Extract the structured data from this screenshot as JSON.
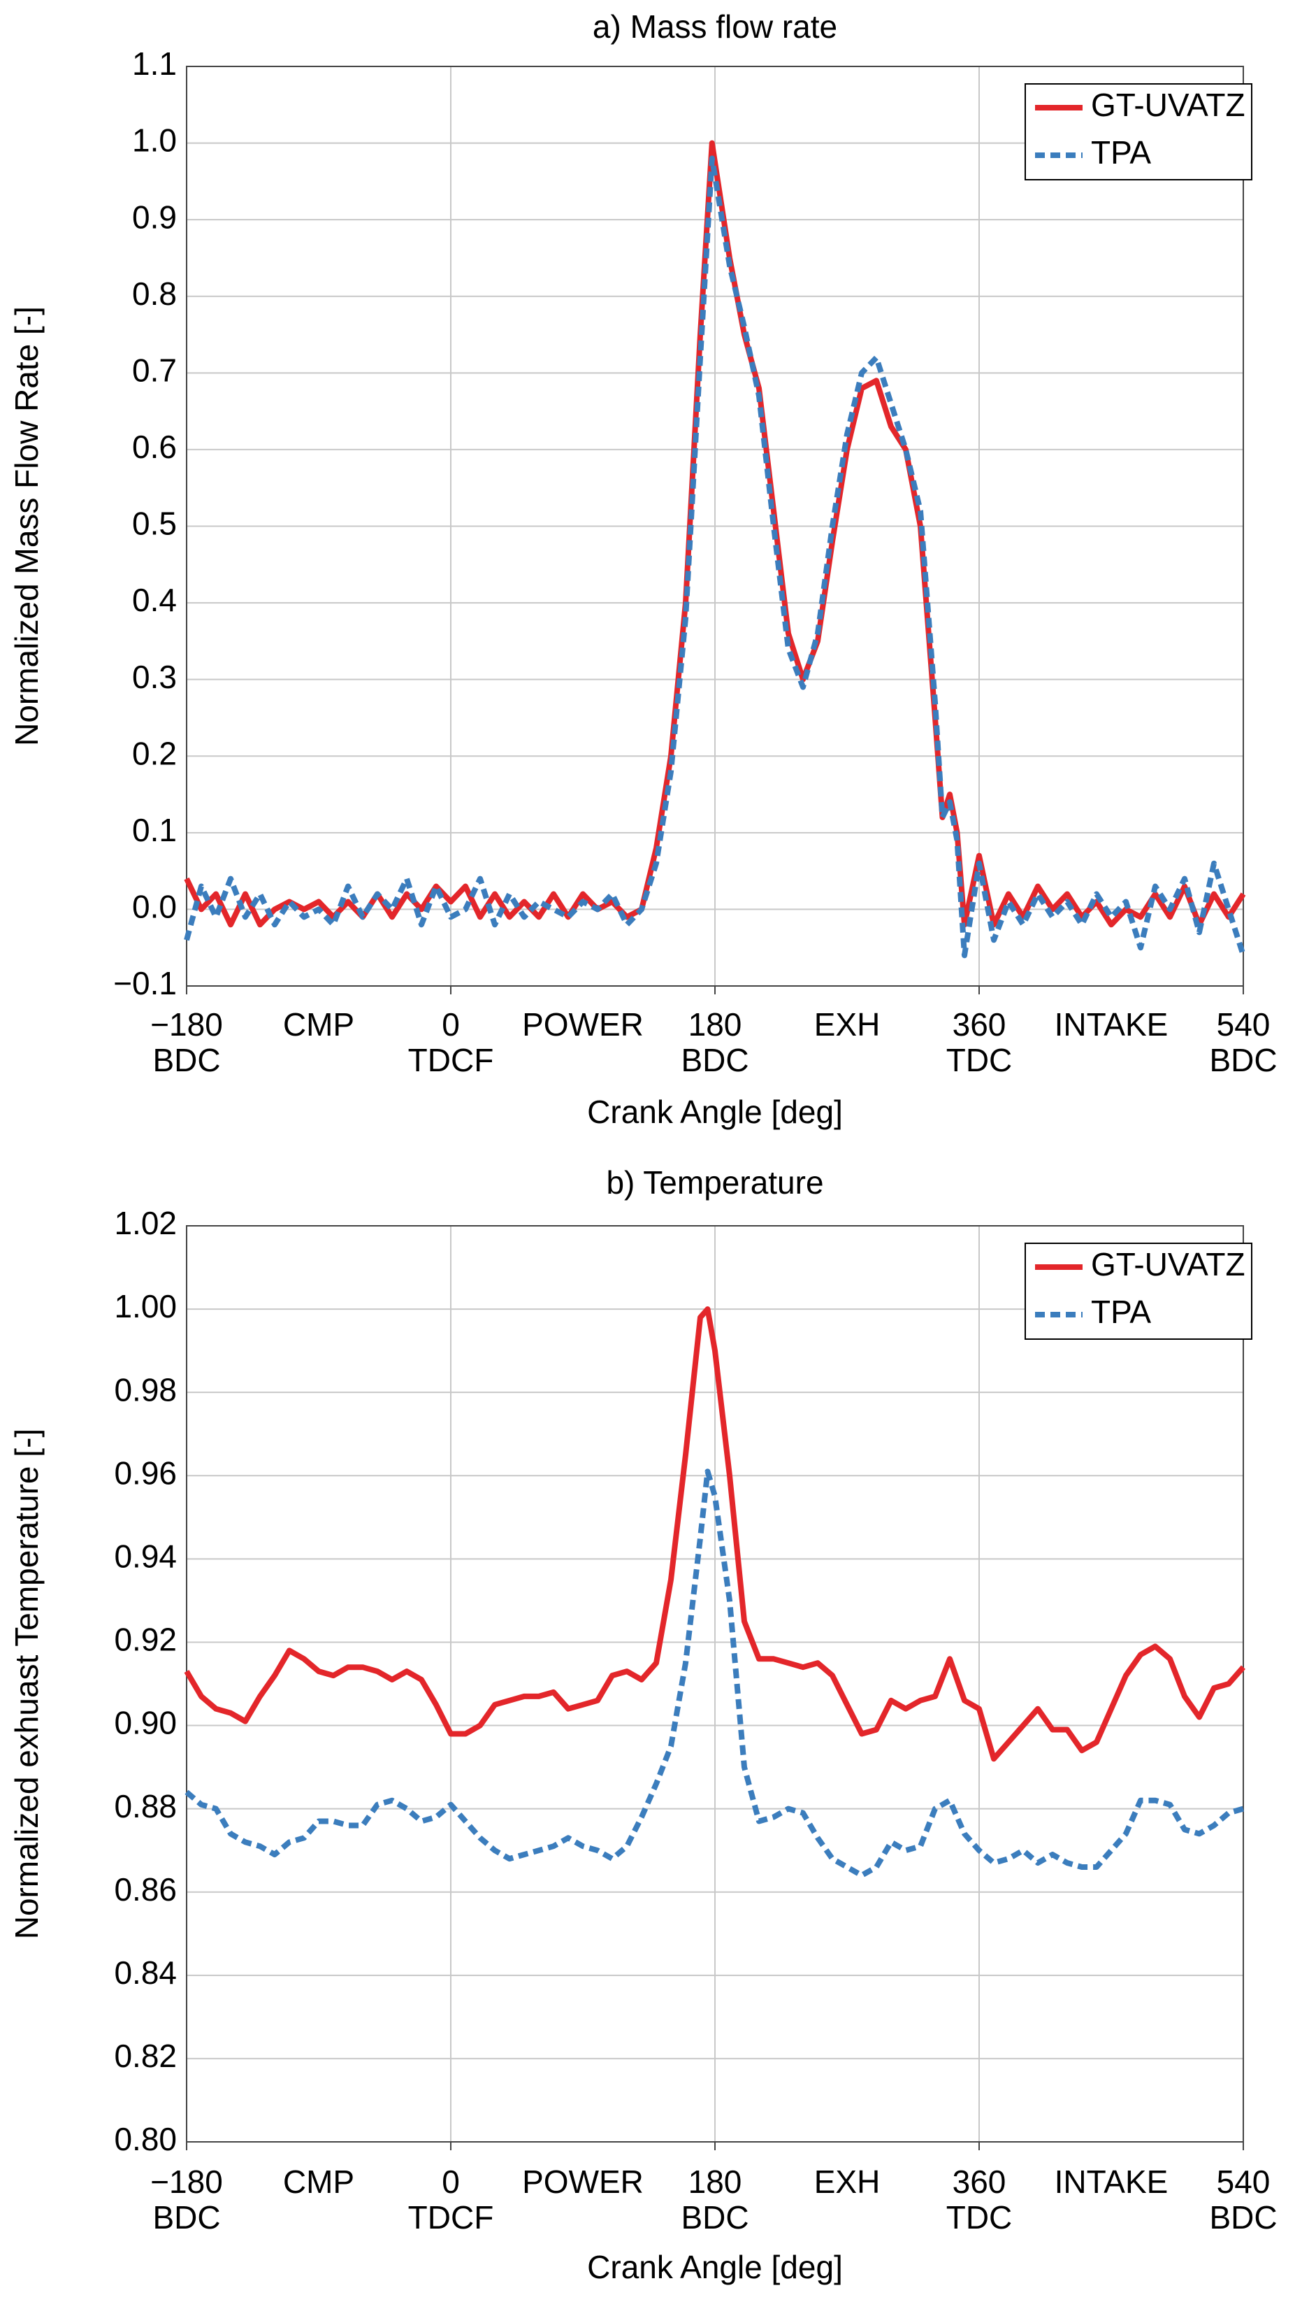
{
  "chart_data": [
    {
      "type": "line",
      "title": "a) Mass flow rate",
      "x_label": "Crank Angle [deg]",
      "y_label": "Normalized Mass Flow Rate [-]",
      "x": [
        -180,
        -170,
        -160,
        -150,
        -140,
        -130,
        -120,
        -110,
        -100,
        -90,
        -80,
        -70,
        -60,
        -50,
        -40,
        -30,
        -20,
        -10,
        0,
        10,
        20,
        30,
        40,
        50,
        60,
        70,
        80,
        90,
        100,
        110,
        120,
        130,
        140,
        150,
        160,
        170,
        178,
        190,
        200,
        210,
        220,
        230,
        240,
        250,
        260,
        270,
        280,
        290,
        300,
        310,
        320,
        330,
        335,
        340,
        345,
        350,
        360,
        370,
        380,
        390,
        400,
        410,
        420,
        430,
        440,
        450,
        460,
        470,
        480,
        490,
        500,
        510,
        520,
        530,
        540
      ],
      "series": [
        {
          "name": "GT-UVATZ",
          "color": "#e3262a",
          "dash": false,
          "values": [
            0.04,
            0.0,
            0.02,
            -0.02,
            0.02,
            -0.02,
            0.0,
            0.01,
            0.0,
            0.01,
            -0.01,
            0.01,
            -0.01,
            0.02,
            -0.01,
            0.02,
            0.0,
            0.03,
            0.01,
            0.03,
            -0.01,
            0.02,
            -0.01,
            0.01,
            -0.01,
            0.02,
            -0.01,
            0.02,
            0.0,
            0.01,
            -0.01,
            0.0,
            0.08,
            0.2,
            0.4,
            0.75,
            1.0,
            0.85,
            0.75,
            0.68,
            0.52,
            0.36,
            0.3,
            0.35,
            0.48,
            0.6,
            0.68,
            0.69,
            0.63,
            0.6,
            0.5,
            0.25,
            0.12,
            0.15,
            0.1,
            -0.02,
            0.07,
            -0.02,
            0.02,
            -0.01,
            0.03,
            0.0,
            0.02,
            -0.01,
            0.01,
            -0.02,
            0.0,
            -0.01,
            0.02,
            -0.01,
            0.03,
            -0.02,
            0.02,
            -0.01,
            0.02
          ]
        },
        {
          "name": "TPA",
          "color": "#3b7dbd",
          "dash": true,
          "values": [
            -0.04,
            0.03,
            -0.01,
            0.04,
            -0.01,
            0.02,
            -0.02,
            0.01,
            -0.01,
            0.0,
            -0.02,
            0.03,
            -0.01,
            0.02,
            0.0,
            0.04,
            -0.02,
            0.03,
            -0.01,
            0.0,
            0.04,
            -0.02,
            0.02,
            -0.01,
            0.01,
            0.0,
            -0.01,
            0.01,
            0.0,
            0.02,
            -0.02,
            0.0,
            0.06,
            0.18,
            0.38,
            0.72,
            0.98,
            0.84,
            0.76,
            0.67,
            0.5,
            0.34,
            0.29,
            0.36,
            0.5,
            0.62,
            0.7,
            0.72,
            0.66,
            0.6,
            0.52,
            0.27,
            0.12,
            0.14,
            0.09,
            -0.06,
            0.06,
            -0.04,
            0.01,
            -0.02,
            0.02,
            -0.01,
            0.01,
            -0.02,
            0.02,
            -0.01,
            0.01,
            -0.05,
            0.03,
            0.0,
            0.04,
            -0.03,
            0.06,
            0.0,
            -0.06
          ]
        }
      ],
      "xlim": [
        -180,
        540
      ],
      "xticks": [
        {
          "value": -180,
          "label": "−180",
          "sublabel": "BDC"
        },
        {
          "value": 0,
          "label": "0",
          "sublabel": "TDCF"
        },
        {
          "value": 180,
          "label": "180",
          "sublabel": "BDC"
        },
        {
          "value": 360,
          "label": "360",
          "sublabel": "TDC"
        },
        {
          "value": 540,
          "label": "540",
          "sublabel": "BDC"
        }
      ],
      "x_phase_labels": [
        {
          "value": -90,
          "label": "CMP"
        },
        {
          "value": 90,
          "label": "POWER"
        },
        {
          "value": 270,
          "label": "EXH"
        },
        {
          "value": 450,
          "label": "INTAKE"
        }
      ],
      "ylim": [
        -0.1,
        1.1
      ],
      "yticks": [
        {
          "value": -0.1,
          "label": "−0.1"
        },
        {
          "value": 0,
          "label": "0.0"
        },
        0.1,
        0.2,
        0.3,
        0.4,
        0.5,
        0.6,
        0.7,
        0.8,
        0.9,
        {
          "value": 1,
          "label": "1.0"
        },
        1.1
      ],
      "grid": true,
      "legend": "upper right"
    },
    {
      "type": "line",
      "title": "b) Temperature",
      "x_label": "Crank Angle [deg]",
      "y_label": "Normalized exhuast Temperature [-]",
      "x": [
        -180,
        -170,
        -160,
        -150,
        -140,
        -130,
        -120,
        -110,
        -100,
        -90,
        -80,
        -70,
        -60,
        -50,
        -40,
        -30,
        -20,
        -10,
        0,
        10,
        20,
        30,
        40,
        50,
        60,
        70,
        80,
        90,
        100,
        110,
        120,
        130,
        140,
        150,
        160,
        170,
        175,
        180,
        190,
        200,
        210,
        220,
        230,
        240,
        250,
        260,
        270,
        280,
        290,
        300,
        310,
        320,
        330,
        340,
        350,
        360,
        370,
        380,
        390,
        400,
        410,
        420,
        430,
        440,
        450,
        460,
        470,
        480,
        490,
        500,
        510,
        520,
        530,
        540
      ],
      "series": [
        {
          "name": "GT-UVATZ",
          "color": "#e3262a",
          "dash": false,
          "values": [
            0.913,
            0.907,
            0.904,
            0.903,
            0.901,
            0.907,
            0.912,
            0.918,
            0.916,
            0.913,
            0.912,
            0.914,
            0.914,
            0.913,
            0.911,
            0.913,
            0.911,
            0.905,
            0.898,
            0.898,
            0.9,
            0.905,
            0.906,
            0.907,
            0.907,
            0.908,
            0.904,
            0.905,
            0.906,
            0.912,
            0.913,
            0.911,
            0.915,
            0.935,
            0.965,
            0.998,
            1.0,
            0.99,
            0.96,
            0.925,
            0.916,
            0.916,
            0.915,
            0.914,
            0.915,
            0.912,
            0.905,
            0.898,
            0.899,
            0.906,
            0.904,
            0.906,
            0.907,
            0.916,
            0.906,
            0.904,
            0.892,
            0.896,
            0.9,
            0.904,
            0.899,
            0.899,
            0.894,
            0.896,
            0.904,
            0.912,
            0.917,
            0.919,
            0.916,
            0.907,
            0.902,
            0.909,
            0.91,
            0.914
          ]
        },
        {
          "name": "TPA",
          "color": "#3b7dbd",
          "dash": true,
          "values": [
            0.884,
            0.881,
            0.88,
            0.874,
            0.872,
            0.871,
            0.869,
            0.872,
            0.873,
            0.877,
            0.877,
            0.876,
            0.876,
            0.881,
            0.882,
            0.88,
            0.877,
            0.878,
            0.881,
            0.877,
            0.873,
            0.87,
            0.868,
            0.869,
            0.87,
            0.871,
            0.873,
            0.871,
            0.87,
            0.868,
            0.871,
            0.878,
            0.886,
            0.895,
            0.915,
            0.945,
            0.961,
            0.955,
            0.93,
            0.89,
            0.877,
            0.878,
            0.88,
            0.879,
            0.873,
            0.868,
            0.866,
            0.864,
            0.866,
            0.872,
            0.87,
            0.871,
            0.88,
            0.882,
            0.874,
            0.87,
            0.867,
            0.868,
            0.87,
            0.867,
            0.869,
            0.867,
            0.866,
            0.866,
            0.87,
            0.874,
            0.882,
            0.882,
            0.881,
            0.875,
            0.874,
            0.876,
            0.879,
            0.88
          ]
        }
      ],
      "xlim": [
        -180,
        540
      ],
      "xticks": [
        {
          "value": -180,
          "label": "−180",
          "sublabel": "BDC"
        },
        {
          "value": 0,
          "label": "0",
          "sublabel": "TDCF"
        },
        {
          "value": 180,
          "label": "180",
          "sublabel": "BDC"
        },
        {
          "value": 360,
          "label": "360",
          "sublabel": "TDC"
        },
        {
          "value": 540,
          "label": "540",
          "sublabel": "BDC"
        }
      ],
      "x_phase_labels": [
        {
          "value": -90,
          "label": "CMP"
        },
        {
          "value": 90,
          "label": "POWER"
        },
        {
          "value": 270,
          "label": "EXH"
        },
        {
          "value": 450,
          "label": "INTAKE"
        }
      ],
      "ylim": [
        0.8,
        1.02
      ],
      "yticks": [
        {
          "value": 0.8,
          "label": "0.80"
        },
        0.82,
        0.84,
        0.86,
        0.88,
        {
          "value": 0.9,
          "label": "0.90"
        },
        0.92,
        0.94,
        0.96,
        0.98,
        {
          "value": 1,
          "label": "1.00"
        },
        1.02
      ],
      "grid": true,
      "legend": "upper right"
    }
  ]
}
